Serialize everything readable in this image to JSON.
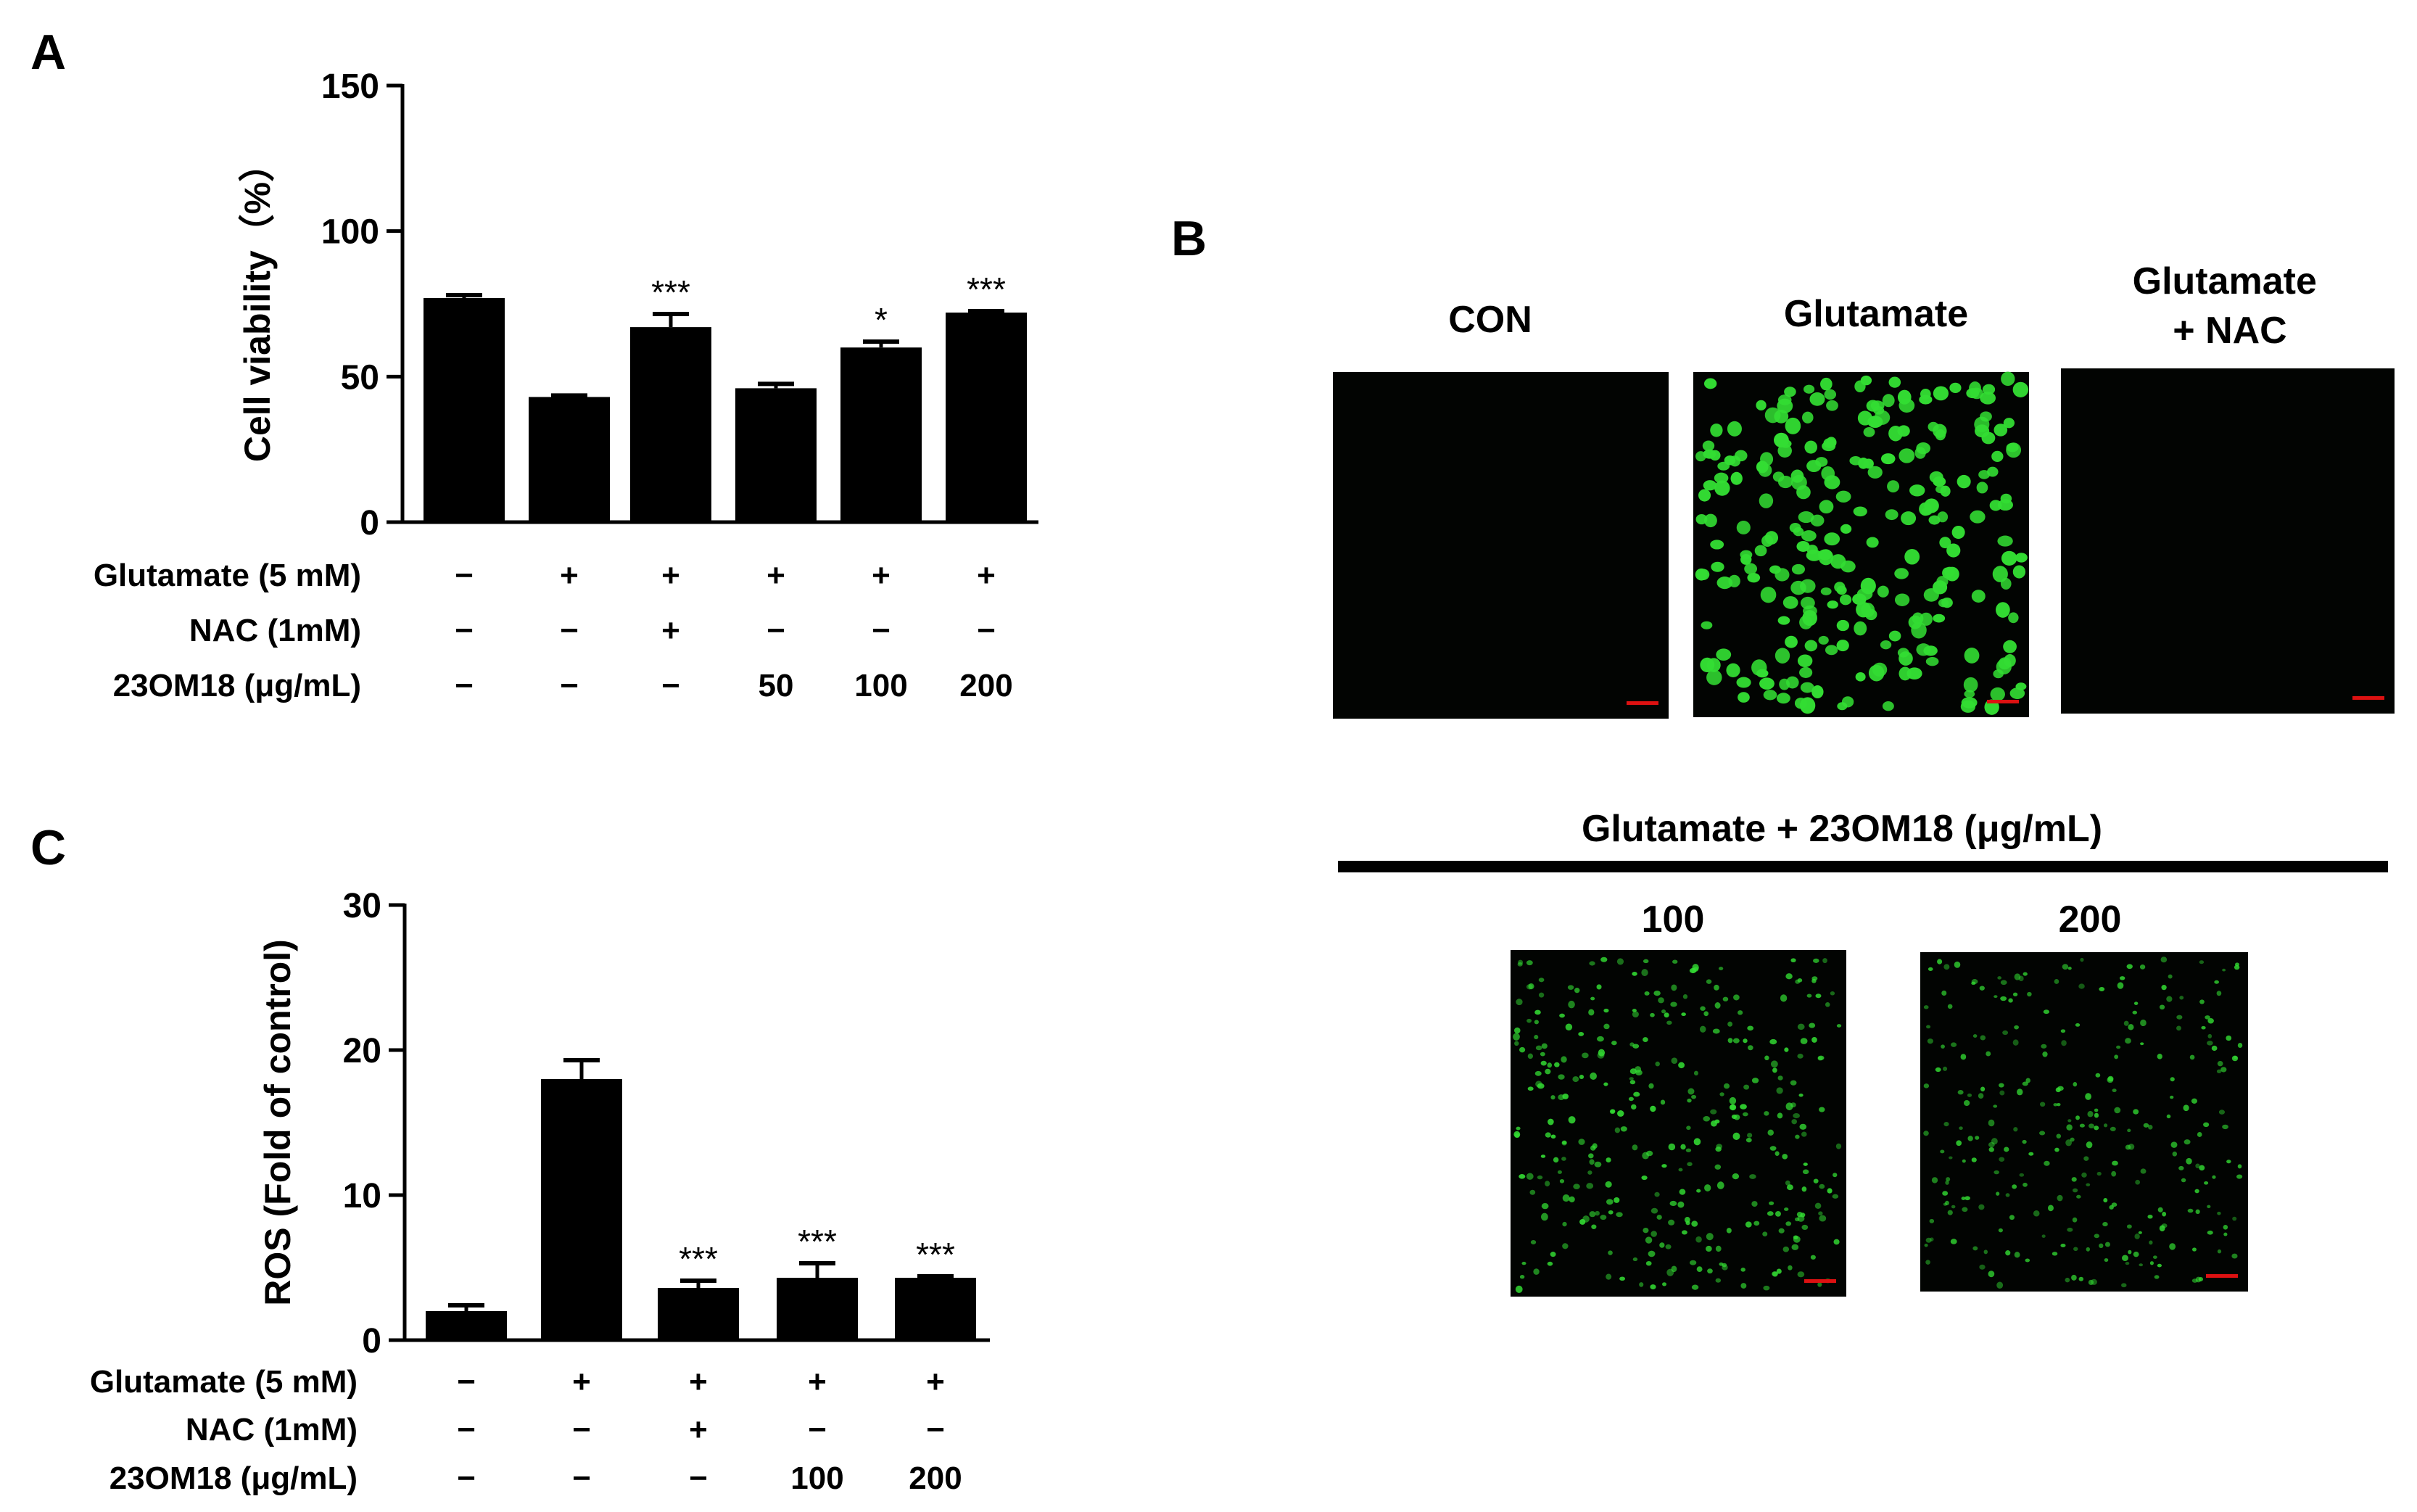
{
  "panels": {
    "A": {
      "letter": "A",
      "chart_data": {
        "type": "bar",
        "ylabel": "Cell viability（%）",
        "ylim": [
          0,
          150
        ],
        "yticks": [
          "0",
          "50",
          "100",
          "150"
        ],
        "values": [
          77,
          43,
          67,
          46,
          60,
          72
        ],
        "errors": [
          1,
          0.5,
          4.5,
          1.5,
          2,
          0.5
        ],
        "significance": [
          "",
          "",
          "***",
          "",
          "*",
          "***"
        ],
        "treatments": [
          {
            "label": "Glutamate (5 mM)",
            "marks": [
              "−",
              "+",
              "+",
              "+",
              "+",
              "+"
            ]
          },
          {
            "label": "NAC (1mM)",
            "marks": [
              "−",
              "−",
              "+",
              "−",
              "−",
              "−"
            ]
          },
          {
            "label": "23OM18 (μg/mL)",
            "marks": [
              "−",
              "−",
              "−",
              "50",
              "100",
              "200"
            ]
          }
        ]
      }
    },
    "C": {
      "letter": "C",
      "chart_data": {
        "type": "bar",
        "ylabel": "ROS (Fold of control)",
        "ylim": [
          0,
          30
        ],
        "yticks": [
          "0",
          "10",
          "20",
          "30"
        ],
        "values": [
          2,
          18,
          3.6,
          4.3,
          4.3
        ],
        "errors": [
          0.4,
          1.3,
          0.5,
          1.0,
          0.1
        ],
        "significance": [
          "",
          "",
          "***",
          "***",
          "***"
        ],
        "treatments": [
          {
            "label": "Glutamate (5 mM)",
            "marks": [
              "−",
              "+",
              "+",
              "+",
              "+"
            ]
          },
          {
            "label": "NAC (1mM)",
            "marks": [
              "−",
              "−",
              "+",
              "−",
              "−"
            ]
          },
          {
            "label": "23OM18 (μg/mL)",
            "marks": [
              "−",
              "−",
              "−",
              "100",
              "200"
            ]
          }
        ]
      }
    },
    "B": {
      "letter": "B",
      "images_top": [
        {
          "title": "CON",
          "fluorescence": "none"
        },
        {
          "title": "Glutamate",
          "fluorescence": "high"
        },
        {
          "title": "Glutamate\n+ NAC",
          "fluorescence": "none"
        }
      ],
      "group_label": "Glutamate + 23OM18 (μg/mL)",
      "images_bottom": [
        {
          "title": "100",
          "fluorescence": "medium"
        },
        {
          "title": "200",
          "fluorescence": "low"
        }
      ],
      "colors": {
        "cells": "#33dd33",
        "background": "#020402",
        "scale_bar": "#dd1111"
      }
    }
  }
}
